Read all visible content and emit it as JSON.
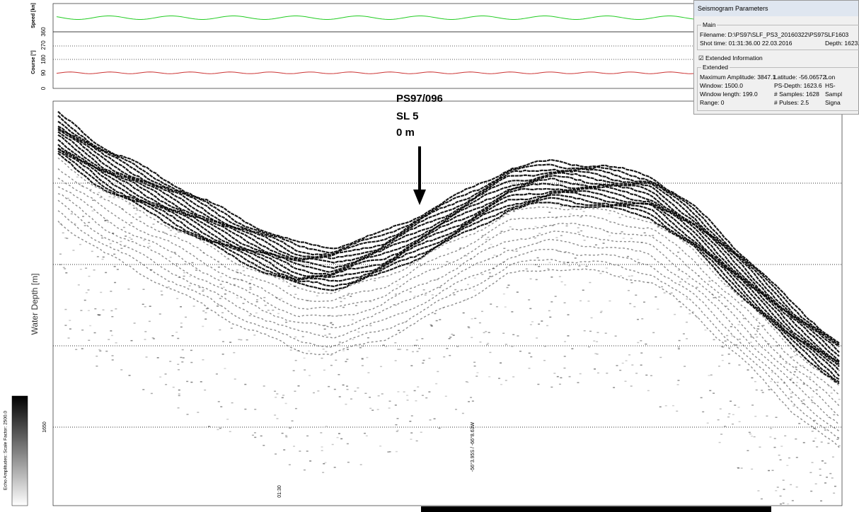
{
  "speed_panel": {
    "label": "Speed [kn]"
  },
  "course_panel": {
    "label": "Course [°]",
    "ticks": [
      "360",
      "270",
      "180",
      "90",
      "0"
    ]
  },
  "profile": {
    "y_label": "Water Depth [m]",
    "depth_tick": "1650",
    "time_tick": "01:30",
    "position": "-56°3.95S / -66°8.63W"
  },
  "annotation": {
    "lines": [
      "PS97/096",
      "SL 5",
      "0 m"
    ]
  },
  "color_bar": {
    "label": "Echo Amplitudes:  Scale Factor:  2500.0"
  },
  "dialog": {
    "title": "Seismogram Parameters",
    "main_group": "Main",
    "filename": "Filename:  D:\\PS97\\SLF_PS3_20160322\\PS97SLF1603",
    "shot_time": "Shot time:  01:31:36.00 22.03.2016",
    "depth": "Depth:  1623.",
    "checkbox": "Extended Information",
    "extended_group": "Extended",
    "rows": [
      [
        "Maximum Amplitude:  3847.1",
        "Latitude:  -56.06572",
        "Lon"
      ],
      [
        "Window:   1500.0",
        "PS-Depth:  1623.6",
        "HS-"
      ],
      [
        "Window length:   199.0",
        "# Samples:  1628",
        "Sampl"
      ],
      [
        "Range:   0",
        "# Pulses:  2.5",
        "Signa"
      ]
    ]
  }
}
